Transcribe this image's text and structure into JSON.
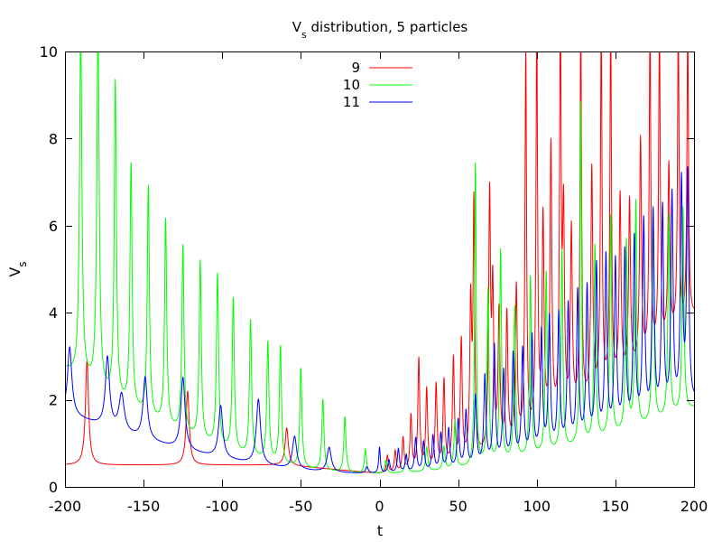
{
  "chart_data": {
    "type": "line",
    "title": {
      "main": "V",
      "sub": "s",
      "rest": " distribution, 5 particles"
    },
    "xlabel": "t",
    "ylabel": {
      "main": "V",
      "sub": "s"
    },
    "xlim": [
      -200,
      200
    ],
    "ylim": [
      0,
      10
    ],
    "xticks": [
      -200,
      -150,
      -100,
      -50,
      0,
      50,
      100,
      150,
      200
    ],
    "yticks": [
      0,
      2,
      4,
      6,
      8,
      10
    ],
    "grid": false,
    "legend_position": "top-center",
    "series": [
      {
        "name": "9",
        "color": "#ff0000",
        "baseline": {
          "mode": "flat_then_rise",
          "t_start": 0.0,
          "curvature": 9e-05
        },
        "base_left": 0.5,
        "base_right": 0.3,
        "peaks": [
          {
            "x": -186,
            "y": 2.9,
            "w": 1.2
          },
          {
            "x": -122,
            "y": 2.2,
            "w": 1.2
          },
          {
            "x": -59,
            "y": 1.35,
            "w": 1.2
          },
          {
            "x": 5,
            "y": 0.7,
            "w": 0.7
          },
          {
            "x": 10,
            "y": 0.8,
            "w": 0.7
          },
          {
            "x": 15,
            "y": 1.1,
            "w": 0.7
          },
          {
            "x": 20,
            "y": 1.6,
            "w": 0.7
          },
          {
            "x": 25,
            "y": 2.9,
            "w": 0.7
          },
          {
            "x": 30,
            "y": 2.2,
            "w": 0.7
          },
          {
            "x": 36,
            "y": 2.3,
            "w": 0.7
          },
          {
            "x": 41,
            "y": 2.4,
            "w": 0.7
          },
          {
            "x": 47,
            "y": 2.9,
            "w": 0.7
          },
          {
            "x": 52,
            "y": 3.3,
            "w": 0.7
          },
          {
            "x": 58,
            "y": 4.1,
            "w": 0.7
          },
          {
            "x": 60,
            "y": 6.3,
            "w": 0.6
          },
          {
            "x": 70,
            "y": 6.5,
            "w": 0.7
          },
          {
            "x": 72,
            "y": 4.3,
            "w": 0.7
          },
          {
            "x": 76,
            "y": 3.9,
            "w": 0.7
          },
          {
            "x": 81,
            "y": 3.9,
            "w": 0.7
          },
          {
            "x": 87,
            "y": 4.5,
            "w": 0.7
          },
          {
            "x": 93,
            "y": 9.9,
            "w": 0.6
          },
          {
            "x": 100,
            "y": 10.5,
            "w": 0.6
          },
          {
            "x": 104,
            "y": 6.0,
            "w": 0.7
          },
          {
            "x": 109,
            "y": 7.7,
            "w": 0.7
          },
          {
            "x": 115,
            "y": 10.5,
            "w": 0.6
          },
          {
            "x": 117,
            "y": 6.0,
            "w": 0.7
          },
          {
            "x": 122,
            "y": 5.8,
            "w": 0.7
          },
          {
            "x": 128,
            "y": 10.5,
            "w": 0.6
          },
          {
            "x": 135,
            "y": 7.2,
            "w": 0.7
          },
          {
            "x": 141,
            "y": 10.5,
            "w": 0.6
          },
          {
            "x": 147,
            "y": 10.5,
            "w": 0.6
          },
          {
            "x": 153,
            "y": 6.6,
            "w": 0.7
          },
          {
            "x": 159,
            "y": 6.5,
            "w": 0.7
          },
          {
            "x": 166,
            "y": 7.9,
            "w": 0.7
          },
          {
            "x": 172,
            "y": 10.5,
            "w": 0.6
          },
          {
            "x": 178,
            "y": 10.5,
            "w": 0.6
          },
          {
            "x": 184,
            "y": 7.3,
            "w": 0.7
          },
          {
            "x": 190,
            "y": 10.5,
            "w": 0.6
          },
          {
            "x": 196,
            "y": 10.5,
            "w": 0.6
          }
        ]
      },
      {
        "name": "10",
        "color": "#00ff00",
        "baseline": {
          "mode": "valley",
          "v_left": 2.7,
          "v_min": 0.3,
          "t_min": -5,
          "v_right": 1.8
        },
        "peaks": [
          {
            "x": -190,
            "y": 10.5,
            "w": 0.9
          },
          {
            "x": -179,
            "y": 10.5,
            "w": 0.9
          },
          {
            "x": -168,
            "y": 9.25,
            "w": 0.8
          },
          {
            "x": -158,
            "y": 7.35,
            "w": 0.8
          },
          {
            "x": -147,
            "y": 6.85,
            "w": 0.8
          },
          {
            "x": -136,
            "y": 6.1,
            "w": 0.8
          },
          {
            "x": -125,
            "y": 5.5,
            "w": 0.8
          },
          {
            "x": -114,
            "y": 5.15,
            "w": 0.8
          },
          {
            "x": -103,
            "y": 4.85,
            "w": 0.8
          },
          {
            "x": -93,
            "y": 4.3,
            "w": 0.8
          },
          {
            "x": -82,
            "y": 3.8,
            "w": 0.8
          },
          {
            "x": -71,
            "y": 3.3,
            "w": 0.8
          },
          {
            "x": -63,
            "y": 3.2,
            "w": 0.8
          },
          {
            "x": -50,
            "y": 2.7,
            "w": 0.8
          },
          {
            "x": -36,
            "y": 2.0,
            "w": 0.8
          },
          {
            "x": -22,
            "y": 1.6,
            "w": 0.8
          },
          {
            "x": -9,
            "y": 0.85,
            "w": 0.8
          },
          {
            "x": 4,
            "y": 0.6,
            "w": 0.8
          },
          {
            "x": 17,
            "y": 0.75,
            "w": 0.8
          },
          {
            "x": 30,
            "y": 0.9,
            "w": 0.8
          },
          {
            "x": 41,
            "y": 0.9,
            "w": 0.8
          },
          {
            "x": 48,
            "y": 1.5,
            "w": 0.8
          },
          {
            "x": 61,
            "y": 7.4,
            "w": 0.6
          },
          {
            "x": 69,
            "y": 4.5,
            "w": 0.7
          },
          {
            "x": 77,
            "y": 5.4,
            "w": 0.7
          },
          {
            "x": 86,
            "y": 4.1,
            "w": 0.7
          },
          {
            "x": 96,
            "y": 4.8,
            "w": 0.7
          },
          {
            "x": 106,
            "y": 4.9,
            "w": 0.7
          },
          {
            "x": 116,
            "y": 5.4,
            "w": 0.7
          },
          {
            "x": 128,
            "y": 8.8,
            "w": 0.6
          },
          {
            "x": 137,
            "y": 5.5,
            "w": 0.7
          },
          {
            "x": 147,
            "y": 6.2,
            "w": 0.7
          },
          {
            "x": 157,
            "y": 5.6,
            "w": 0.7
          },
          {
            "x": 163,
            "y": 6.5,
            "w": 0.7
          },
          {
            "x": 174,
            "y": 6.2,
            "w": 0.7
          },
          {
            "x": 184,
            "y": 6.2,
            "w": 0.7
          },
          {
            "x": 193,
            "y": 6.4,
            "w": 0.7
          }
        ]
      },
      {
        "name": "11",
        "color": "#0000ff",
        "baseline": {
          "mode": "valley",
          "v_left": 1.7,
          "v_min": 0.3,
          "t_min": 0,
          "v_right": 1.9
        },
        "peaks": [
          {
            "x": -197,
            "y": 3.2,
            "w": 1.6
          },
          {
            "x": -173,
            "y": 2.95,
            "w": 1.6
          },
          {
            "x": -164,
            "y": 2.1,
            "w": 2.0
          },
          {
            "x": -149,
            "y": 2.5,
            "w": 1.6
          },
          {
            "x": -125,
            "y": 2.5,
            "w": 1.6
          },
          {
            "x": -101,
            "y": 1.85,
            "w": 1.6
          },
          {
            "x": -77,
            "y": 2.0,
            "w": 1.6
          },
          {
            "x": -54,
            "y": 1.15,
            "w": 1.6
          },
          {
            "x": -32,
            "y": 0.9,
            "w": 1.6
          },
          {
            "x": -8,
            "y": 0.45,
            "w": 1.0
          },
          {
            "x": 0,
            "y": 0.9,
            "w": 0.6
          },
          {
            "x": 6,
            "y": 0.6,
            "w": 0.8
          },
          {
            "x": 12,
            "y": 0.85,
            "w": 0.8
          },
          {
            "x": 17,
            "y": 0.7,
            "w": 0.8
          },
          {
            "x": 23,
            "y": 1.1,
            "w": 0.8
          },
          {
            "x": 28,
            "y": 1.0,
            "w": 0.8
          },
          {
            "x": 34,
            "y": 1.15,
            "w": 0.8
          },
          {
            "x": 39,
            "y": 1.2,
            "w": 0.8
          },
          {
            "x": 44,
            "y": 1.3,
            "w": 0.8
          },
          {
            "x": 50,
            "y": 1.5,
            "w": 0.8
          },
          {
            "x": 55,
            "y": 1.7,
            "w": 0.8
          },
          {
            "x": 61,
            "y": 2.05,
            "w": 0.8
          },
          {
            "x": 67,
            "y": 2.5,
            "w": 0.8
          },
          {
            "x": 73,
            "y": 3.2,
            "w": 0.8
          },
          {
            "x": 79,
            "y": 2.6,
            "w": 0.8
          },
          {
            "x": 85,
            "y": 3.0,
            "w": 0.8
          },
          {
            "x": 91,
            "y": 3.1,
            "w": 0.8
          },
          {
            "x": 97,
            "y": 3.4,
            "w": 0.8
          },
          {
            "x": 103,
            "y": 3.5,
            "w": 0.8
          },
          {
            "x": 108,
            "y": 3.8,
            "w": 0.8
          },
          {
            "x": 114,
            "y": 3.9,
            "w": 0.8
          },
          {
            "x": 120,
            "y": 4.1,
            "w": 0.8
          },
          {
            "x": 126,
            "y": 4.4,
            "w": 0.8
          },
          {
            "x": 132,
            "y": 4.5,
            "w": 0.8
          },
          {
            "x": 138,
            "y": 5.0,
            "w": 0.8
          },
          {
            "x": 144,
            "y": 5.2,
            "w": 0.8
          },
          {
            "x": 150,
            "y": 5.1,
            "w": 0.8
          },
          {
            "x": 156,
            "y": 5.3,
            "w": 0.8
          },
          {
            "x": 162,
            "y": 5.6,
            "w": 0.8
          },
          {
            "x": 168,
            "y": 6.0,
            "w": 0.8
          },
          {
            "x": 174,
            "y": 6.2,
            "w": 0.8
          },
          {
            "x": 180,
            "y": 6.3,
            "w": 0.8
          },
          {
            "x": 186,
            "y": 6.6,
            "w": 0.8
          },
          {
            "x": 192,
            "y": 6.9,
            "w": 0.8
          },
          {
            "x": 196,
            "y": 7.1,
            "w": 0.8
          }
        ]
      }
    ]
  }
}
